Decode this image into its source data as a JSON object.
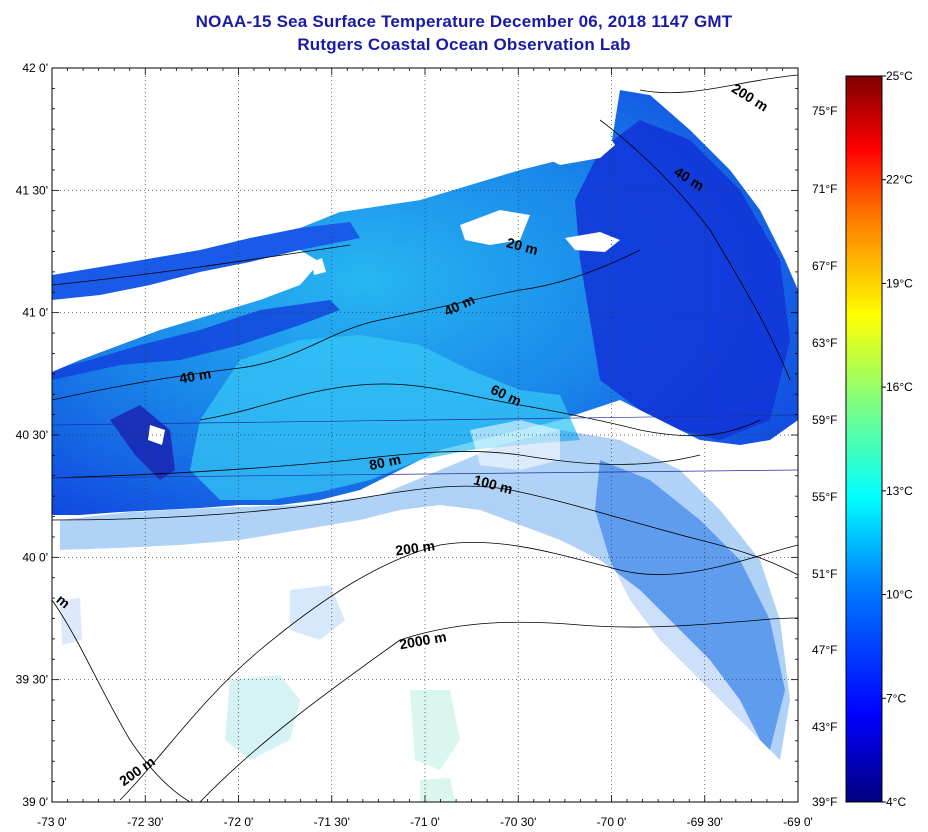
{
  "title": "NOAA-15 Sea Surface Temperature December 06, 2018 1147 GMT",
  "subtitle": "Rutgers Coastal Ocean Observation Lab",
  "axes": {
    "lat_labels": [
      "42 0'",
      "41 30'",
      "41 0'",
      "40 30'",
      "40 0'",
      "39 30'",
      "39 0'"
    ],
    "lon_labels": [
      "-73 0'",
      "-72 30'",
      "-72 0'",
      "-71 30'",
      "-71 0'",
      "-70 30'",
      "-70 0'",
      "-69 30'",
      "-69 0'"
    ],
    "lat_range": [
      39.0,
      42.0
    ],
    "lon_range": [
      -73.0,
      -69.0
    ],
    "grid": "dotted"
  },
  "fahrenheit_labels": [
    "75°F",
    "71°F",
    "67°F",
    "63°F",
    "59°F",
    "55°F",
    "51°F",
    "47°F",
    "43°F",
    "39°F"
  ],
  "colorbar": {
    "celsius_labels": [
      "25°C",
      "22°C",
      "19°C",
      "16°C",
      "13°C",
      "10°C",
      "7°C",
      "4°C"
    ],
    "range_c": [
      4,
      25
    ],
    "colors": [
      "#00007f",
      "#0000ff",
      "#007fff",
      "#00ffff",
      "#7fff7f",
      "#ffff00",
      "#ff7f00",
      "#ff0000",
      "#7f0000"
    ]
  },
  "contour_labels": [
    "200 m",
    "40 m",
    "20 m",
    "40 m",
    "40 m",
    "60 m",
    "80 m",
    "100 m",
    "200 m",
    "2000 m",
    "200 m",
    "m"
  ],
  "colors": {
    "title": "#1a1aa8",
    "land": "#ffffff",
    "nodata": "#ffffff",
    "contour": "#000000"
  }
}
